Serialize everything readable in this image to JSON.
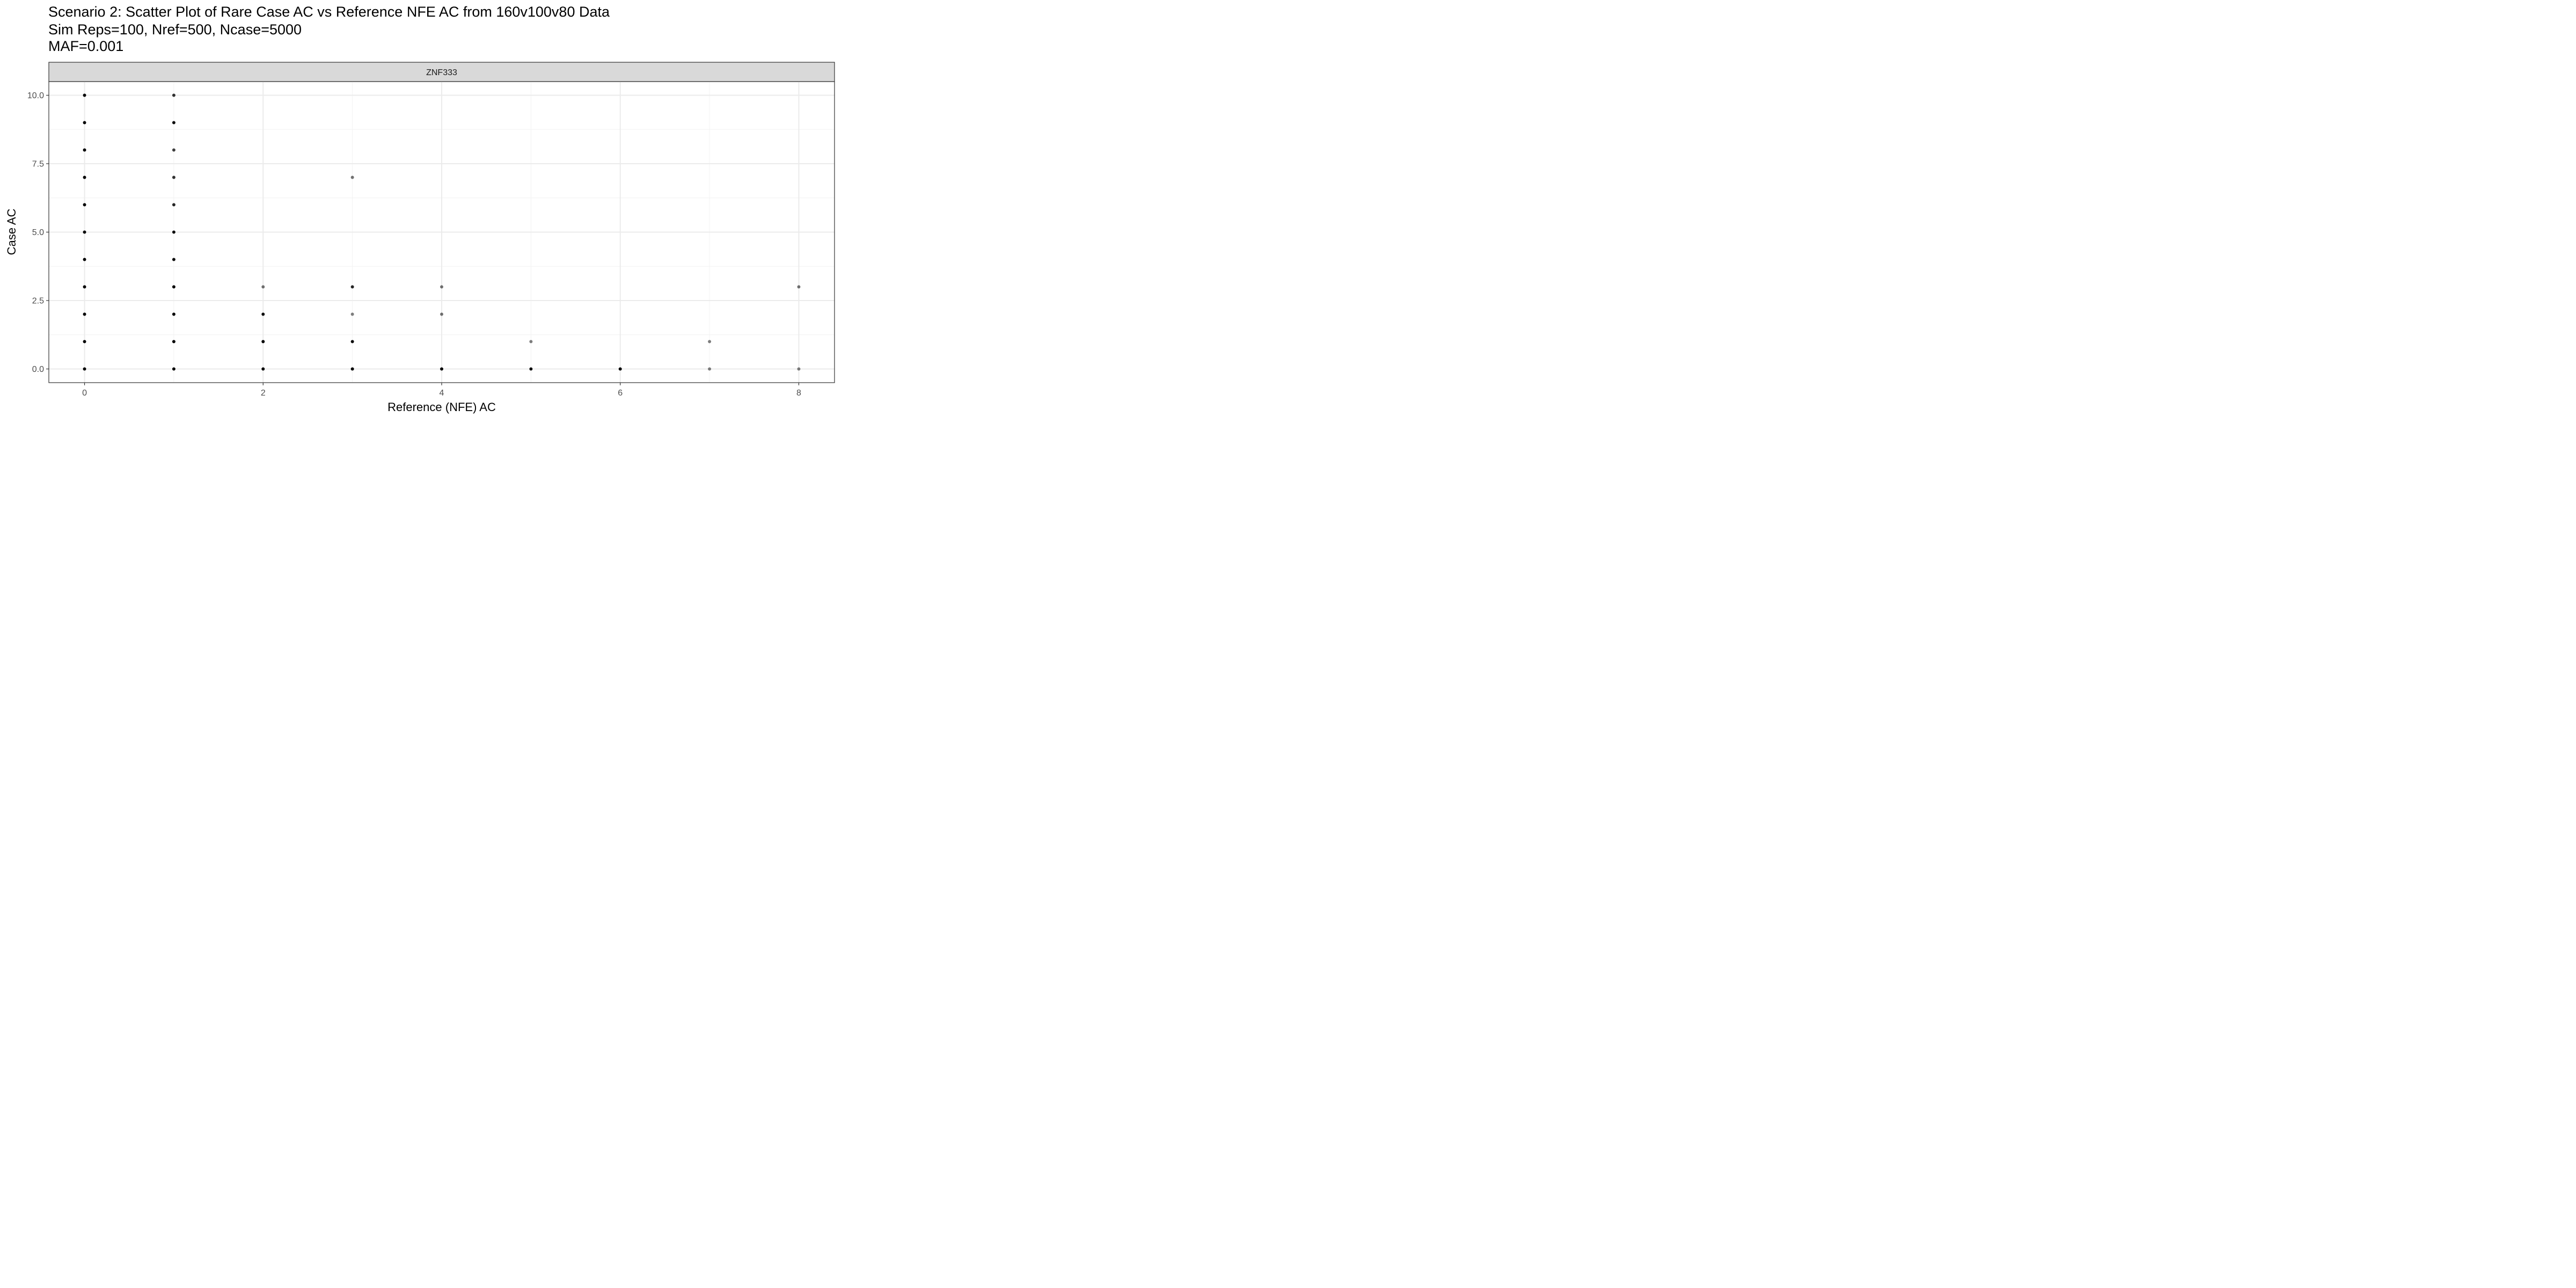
{
  "chart_data": {
    "type": "scatter",
    "title": "Scenario 2: Scatter Plot of Rare Case AC vs Reference NFE AC from 160v100v80 Data",
    "subtitle_lines": [
      "Sim Reps=100, Nref=500, Ncase=5000",
      "MAF=0.001"
    ],
    "facet_label": "ZNF333",
    "xlabel": "Reference (NFE) AC",
    "ylabel": "Case AC",
    "xlim": [
      -0.4,
      8.4
    ],
    "ylim": [
      -0.5,
      10.5
    ],
    "x_ticks": [
      0,
      2,
      4,
      6,
      8
    ],
    "x_tick_labels": [
      "0",
      "2",
      "4",
      "6",
      "8"
    ],
    "y_ticks": [
      0,
      2.5,
      5,
      7.5,
      10
    ],
    "y_tick_labels": [
      "0.0",
      "2.5",
      "5.0",
      "7.5",
      "10.0"
    ],
    "grid": true,
    "point_color": "#000000",
    "points": [
      {
        "x": 0,
        "y": 0,
        "alpha": 1.0
      },
      {
        "x": 0,
        "y": 1,
        "alpha": 1.0
      },
      {
        "x": 0,
        "y": 2,
        "alpha": 1.0
      },
      {
        "x": 0,
        "y": 3,
        "alpha": 1.0
      },
      {
        "x": 0,
        "y": 4,
        "alpha": 1.0
      },
      {
        "x": 0,
        "y": 5,
        "alpha": 1.0
      },
      {
        "x": 0,
        "y": 6,
        "alpha": 1.0
      },
      {
        "x": 0,
        "y": 7,
        "alpha": 1.0
      },
      {
        "x": 0,
        "y": 8,
        "alpha": 1.0
      },
      {
        "x": 0,
        "y": 9,
        "alpha": 1.0
      },
      {
        "x": 0,
        "y": 10,
        "alpha": 1.0
      },
      {
        "x": 1,
        "y": 0,
        "alpha": 1.0
      },
      {
        "x": 1,
        "y": 1,
        "alpha": 1.0
      },
      {
        "x": 1,
        "y": 2,
        "alpha": 1.0
      },
      {
        "x": 1,
        "y": 3,
        "alpha": 1.0
      },
      {
        "x": 1,
        "y": 4,
        "alpha": 0.95
      },
      {
        "x": 1,
        "y": 5,
        "alpha": 0.95
      },
      {
        "x": 1,
        "y": 6,
        "alpha": 0.85
      },
      {
        "x": 1,
        "y": 7,
        "alpha": 0.8
      },
      {
        "x": 1,
        "y": 8,
        "alpha": 0.75
      },
      {
        "x": 1,
        "y": 9,
        "alpha": 0.95
      },
      {
        "x": 1,
        "y": 10,
        "alpha": 0.8
      },
      {
        "x": 2,
        "y": 0,
        "alpha": 1.0
      },
      {
        "x": 2,
        "y": 1,
        "alpha": 1.0
      },
      {
        "x": 2,
        "y": 2,
        "alpha": 0.95
      },
      {
        "x": 2,
        "y": 3,
        "alpha": 0.55
      },
      {
        "x": 3,
        "y": 0,
        "alpha": 1.0
      },
      {
        "x": 3,
        "y": 1,
        "alpha": 0.95
      },
      {
        "x": 3,
        "y": 2,
        "alpha": 0.5
      },
      {
        "x": 3,
        "y": 3,
        "alpha": 0.85
      },
      {
        "x": 3,
        "y": 7,
        "alpha": 0.55
      },
      {
        "x": 4,
        "y": 0,
        "alpha": 1.0
      },
      {
        "x": 4,
        "y": 2,
        "alpha": 0.55
      },
      {
        "x": 4,
        "y": 3,
        "alpha": 0.55
      },
      {
        "x": 5,
        "y": 0,
        "alpha": 0.95
      },
      {
        "x": 5,
        "y": 1,
        "alpha": 0.5
      },
      {
        "x": 6,
        "y": 0,
        "alpha": 1.0
      },
      {
        "x": 7,
        "y": 0,
        "alpha": 0.5
      },
      {
        "x": 7,
        "y": 1,
        "alpha": 0.5
      },
      {
        "x": 8,
        "y": 0,
        "alpha": 0.5
      },
      {
        "x": 8,
        "y": 3,
        "alpha": 0.55
      }
    ]
  }
}
